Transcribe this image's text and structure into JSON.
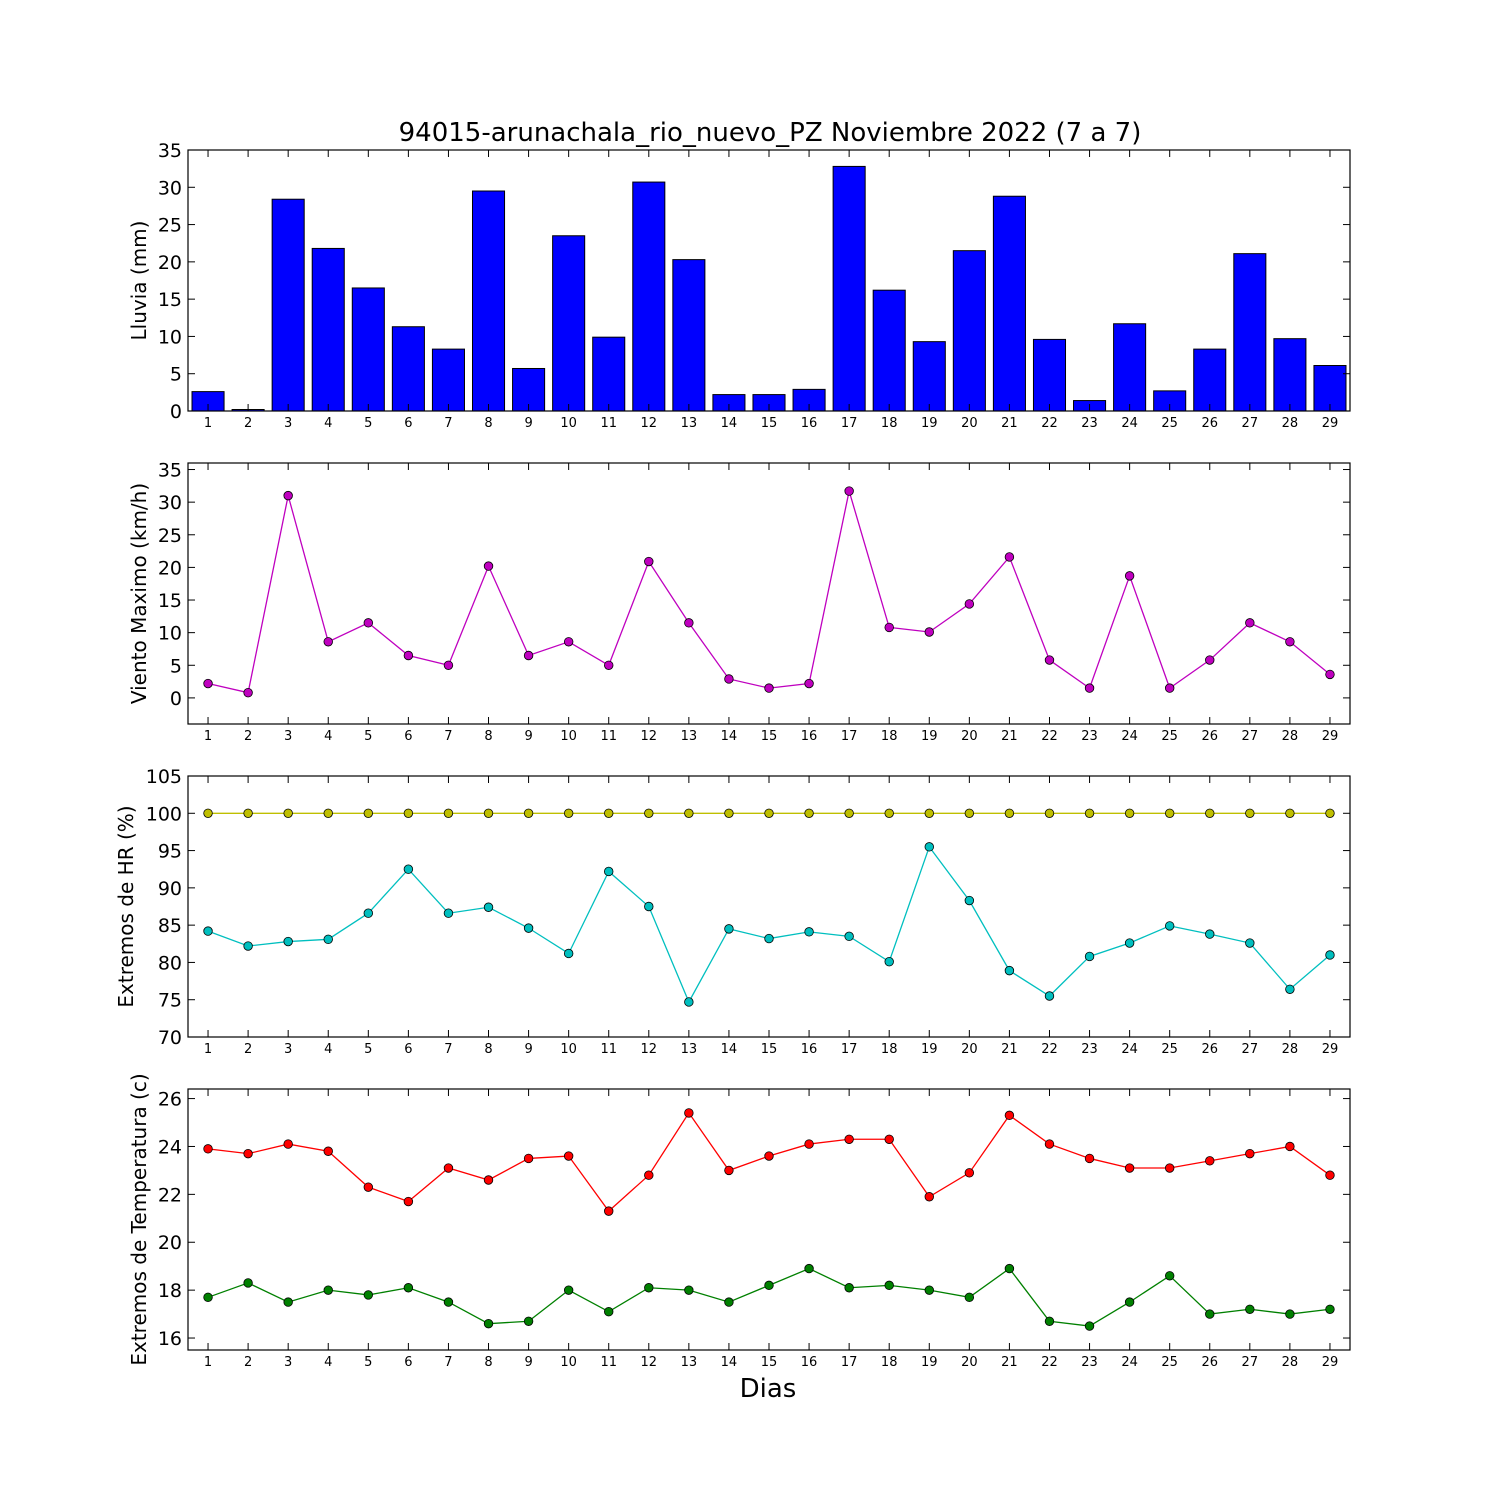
{
  "title": "94015-arunachala_rio_nuevo_PZ Noviembre 2022  (7 a 7)",
  "xlabel": "Dias",
  "colors": {
    "rain": "#0000ff",
    "wind": "#bf00bf",
    "hr_max": "#bfbf00",
    "hr_min": "#00bfbf",
    "temp_max": "#ff0000",
    "temp_min": "#008000"
  },
  "chart_data": [
    {
      "type": "bar",
      "id": "rain",
      "ylabel": "Lluvia (mm)",
      "categories": [
        1,
        2,
        3,
        4,
        5,
        6,
        7,
        8,
        9,
        10,
        11,
        12,
        13,
        14,
        15,
        16,
        17,
        18,
        19,
        20,
        21,
        22,
        23,
        24,
        25,
        26,
        27,
        28,
        29
      ],
      "values": [
        2.6,
        0.2,
        28.4,
        21.8,
        16.5,
        11.3,
        8.3,
        29.5,
        5.7,
        23.5,
        9.9,
        30.7,
        20.3,
        2.2,
        2.2,
        2.9,
        32.8,
        16.2,
        9.3,
        21.5,
        28.8,
        9.6,
        1.4,
        11.7,
        2.7,
        8.3,
        21.1,
        9.7,
        6.1
      ],
      "ylim": [
        0,
        35
      ],
      "yticks": [
        0,
        5,
        10,
        15,
        20,
        25,
        30,
        35
      ]
    },
    {
      "type": "line",
      "id": "wind",
      "ylabel": "Viento Maximo (km/h)",
      "x": [
        1,
        2,
        3,
        4,
        5,
        6,
        7,
        8,
        9,
        10,
        11,
        12,
        13,
        14,
        15,
        16,
        17,
        18,
        19,
        20,
        21,
        22,
        23,
        24,
        25,
        26,
        27,
        28,
        29
      ],
      "series": [
        {
          "values": [
            2.2,
            0.8,
            31.0,
            8.6,
            11.5,
            6.5,
            5.0,
            20.2,
            6.5,
            8.6,
            5.0,
            20.9,
            11.5,
            2.9,
            1.5,
            2.2,
            31.7,
            10.8,
            10.1,
            14.4,
            21.6,
            5.8,
            1.5,
            18.7,
            1.5,
            5.8,
            11.5,
            8.6,
            3.6
          ]
        }
      ],
      "ylim": [
        -4,
        36
      ],
      "yticks": [
        0,
        5,
        10,
        15,
        20,
        25,
        30,
        35
      ]
    },
    {
      "type": "line",
      "id": "hr",
      "ylabel": "Extremos de HR (%)",
      "x": [
        1,
        2,
        3,
        4,
        5,
        6,
        7,
        8,
        9,
        10,
        11,
        12,
        13,
        14,
        15,
        16,
        17,
        18,
        19,
        20,
        21,
        22,
        23,
        24,
        25,
        26,
        27,
        28,
        29
      ],
      "series": [
        {
          "values": [
            100,
            100,
            100,
            100,
            100,
            100,
            100,
            100,
            100,
            100,
            100,
            100,
            100,
            100,
            100,
            100,
            100,
            100,
            100,
            100,
            100,
            100,
            100,
            100,
            100,
            100,
            100,
            100,
            100
          ]
        },
        {
          "values": [
            84.2,
            82.2,
            82.8,
            83.1,
            86.6,
            92.5,
            86.6,
            87.4,
            84.6,
            81.2,
            92.2,
            87.5,
            74.7,
            84.5,
            83.2,
            84.1,
            83.5,
            80.1,
            95.5,
            88.3,
            78.9,
            75.5,
            80.8,
            82.6,
            84.9,
            83.8,
            82.6,
            76.4,
            81.0
          ]
        }
      ],
      "ylim": [
        70,
        105
      ],
      "yticks": [
        70,
        75,
        80,
        85,
        90,
        95,
        100,
        105
      ]
    },
    {
      "type": "line",
      "id": "temp",
      "ylabel": "Extremos de Temperatura (c)",
      "x": [
        1,
        2,
        3,
        4,
        5,
        6,
        7,
        8,
        9,
        10,
        11,
        12,
        13,
        14,
        15,
        16,
        17,
        18,
        19,
        20,
        21,
        22,
        23,
        24,
        25,
        26,
        27,
        28,
        29
      ],
      "series": [
        {
          "values": [
            23.9,
            23.7,
            24.1,
            23.8,
            22.3,
            21.7,
            23.1,
            22.6,
            23.5,
            23.6,
            21.3,
            22.8,
            25.4,
            23.0,
            23.6,
            24.1,
            24.3,
            24.3,
            21.9,
            22.9,
            25.3,
            24.1,
            23.5,
            23.1,
            23.1,
            23.4,
            23.7,
            24.0,
            22.8
          ]
        },
        {
          "values": [
            17.7,
            18.3,
            17.5,
            18.0,
            17.8,
            18.1,
            17.5,
            16.6,
            16.7,
            18.0,
            17.1,
            18.1,
            18.0,
            17.5,
            18.2,
            18.9,
            18.1,
            18.2,
            18.0,
            17.7,
            18.9,
            16.7,
            16.5,
            17.5,
            18.6,
            17.0,
            17.2,
            17.0,
            17.2
          ]
        }
      ],
      "ylim": [
        15.5,
        26.4
      ],
      "yticks": [
        16,
        18,
        20,
        22,
        24,
        26
      ]
    }
  ]
}
